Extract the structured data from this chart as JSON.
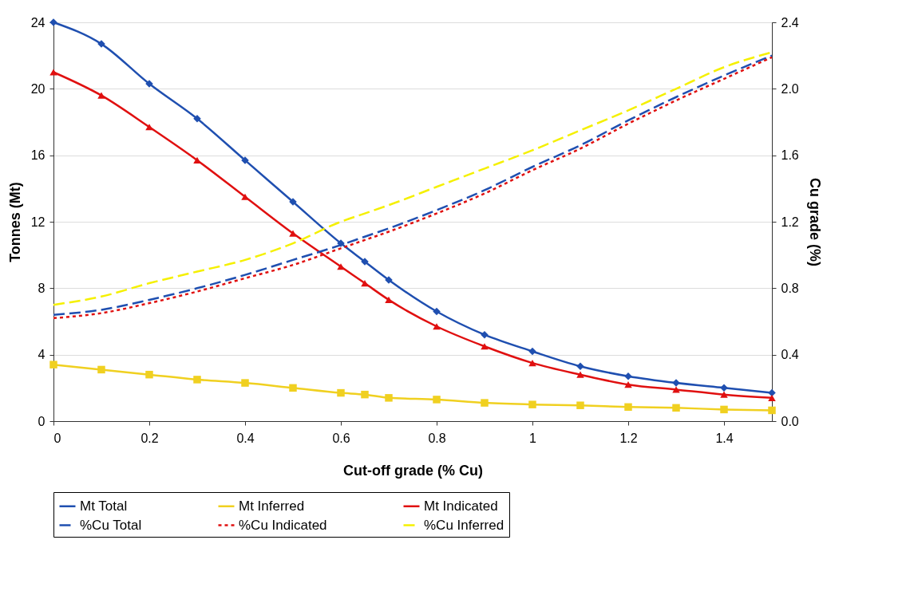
{
  "chart_data": {
    "type": "line",
    "xlabel": "Cut-off grade (% Cu)",
    "ylabel": "Tonnes (Mt)",
    "y2label": "Cu grade (%)",
    "x": [
      0,
      0.1,
      0.2,
      0.3,
      0.4,
      0.5,
      0.6,
      0.65,
      0.7,
      0.8,
      0.9,
      1.0,
      1.1,
      1.2,
      1.3,
      1.4,
      1.5
    ],
    "xlim": [
      0,
      1.5
    ],
    "xticks": [
      0,
      0.2,
      0.4,
      0.6,
      0.8,
      1,
      1.2,
      1.4
    ],
    "ylim": [
      0,
      24
    ],
    "yticks": [
      0,
      4,
      8,
      12,
      16,
      20,
      24
    ],
    "y2lim": [
      0,
      2.4
    ],
    "y2ticks": [
      {
        "value": 0,
        "label": "0.0"
      },
      {
        "value": 0.4,
        "label": "0.4"
      },
      {
        "value": 0.8,
        "label": "0.8"
      },
      {
        "value": 1.2,
        "label": "1.2"
      },
      {
        "value": 1.6,
        "label": "1.6"
      },
      {
        "value": 2.0,
        "label": "2.0"
      },
      {
        "value": 2.4,
        "label": "2.4"
      }
    ],
    "grid": "y",
    "legend": "bottom",
    "series": [
      {
        "name": "Mt Total",
        "color": "#1f4fb0",
        "marker": "diamond",
        "line_style": "solid",
        "values": [
          24,
          22.7,
          20.3,
          18.2,
          15.7,
          13.2,
          10.7,
          9.6,
          8.5,
          6.6,
          5.2,
          4.2,
          3.3,
          2.7,
          2.3,
          2.0,
          1.7
        ]
      },
      {
        "name": "Mt Inferred",
        "color": "#f0d020",
        "marker": "square",
        "line_style": "solid",
        "values": [
          3.4,
          3.1,
          2.8,
          2.5,
          2.3,
          2.0,
          1.7,
          1.6,
          1.4,
          1.3,
          1.1,
          1.0,
          0.95,
          0.85,
          0.8,
          0.7,
          0.65
        ]
      },
      {
        "name": "Mt Indicated",
        "color": "#e01010",
        "marker": "triangle",
        "line_style": "solid",
        "values": [
          21.0,
          19.6,
          17.7,
          15.7,
          13.5,
          11.3,
          9.3,
          8.3,
          7.3,
          5.7,
          4.5,
          3.5,
          2.8,
          2.2,
          1.9,
          1.6,
          1.4
        ]
      },
      {
        "name": "%Cu Total",
        "color": "#1f4fb0",
        "marker": "none",
        "line_style": "dashed",
        "axis": "y2",
        "values": [
          0.64,
          0.67,
          0.73,
          0.8,
          0.88,
          0.97,
          1.06,
          1.11,
          1.16,
          1.27,
          1.39,
          1.53,
          1.66,
          1.81,
          1.95,
          2.08,
          2.2
        ]
      },
      {
        "name": "%Cu Indicated",
        "color": "#e01010",
        "marker": "none",
        "line_style": "dotted",
        "axis": "y2",
        "values": [
          0.62,
          0.65,
          0.71,
          0.78,
          0.86,
          0.94,
          1.04,
          1.09,
          1.14,
          1.25,
          1.37,
          1.51,
          1.64,
          1.79,
          1.93,
          2.06,
          2.19
        ]
      },
      {
        "name": "%Cu Inferred",
        "color": "#f5f000",
        "marker": "none",
        "line_style": "dashed",
        "axis": "y2",
        "values": [
          0.7,
          0.75,
          0.83,
          0.9,
          0.97,
          1.07,
          1.2,
          1.25,
          1.3,
          1.41,
          1.52,
          1.63,
          1.75,
          1.87,
          2.0,
          2.13,
          2.22
        ]
      }
    ]
  }
}
